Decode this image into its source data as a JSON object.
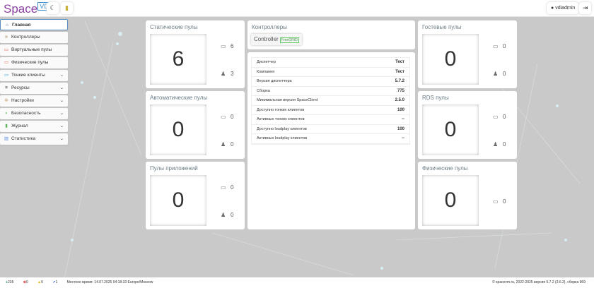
{
  "header": {
    "logo": "Space",
    "logo_badge": "VDI",
    "theme_icon": "moon-icon",
    "book_icon": "book-icon",
    "user": "vdiadmin",
    "logout_icon": "logout-icon"
  },
  "sidebar": {
    "items": [
      {
        "label": "Главная",
        "icon": "home-icon",
        "glyph": "⌂",
        "color": "#4a6a8a",
        "expand": false
      },
      {
        "label": "Контроллеры",
        "icon": "controller-icon",
        "glyph": "■",
        "color": "#d2c0a8",
        "expand": false
      },
      {
        "label": "Виртуальные пулы",
        "icon": "monitor-icon",
        "glyph": "▭",
        "color": "#e05a4a",
        "expand": false
      },
      {
        "label": "Физические пулы",
        "icon": "monitor-icon",
        "glyph": "▭",
        "color": "#e05a4a",
        "expand": false
      },
      {
        "label": "Тонкие клиенты",
        "icon": "laptop-icon",
        "glyph": "▭",
        "color": "#2aa8e0",
        "expand": true
      },
      {
        "label": "Ресурсы",
        "icon": "database-icon",
        "glyph": "≡",
        "color": "#333",
        "expand": true
      },
      {
        "label": "Настройки",
        "icon": "gear-icon",
        "glyph": "✲",
        "color": "#c8a070",
        "expand": true
      },
      {
        "label": "Безопасность",
        "icon": "shield-icon",
        "glyph": "◗",
        "color": "#4caf50",
        "expand": true
      },
      {
        "label": "Журнал",
        "icon": "clipboard-icon",
        "glyph": "▮",
        "color": "#5cb85c",
        "expand": true
      },
      {
        "label": "Статистика",
        "icon": "chart-icon",
        "glyph": "▥",
        "color": "#5b8de0",
        "expand": true
      }
    ]
  },
  "pools": [
    {
      "title": "Статические пулы",
      "count": "6",
      "vms": "6",
      "users": "3"
    },
    {
      "title": "Автоматические пулы",
      "count": "0",
      "vms": "0",
      "users": "0"
    },
    {
      "title": "Пулы приложений",
      "count": "0",
      "vms": "0",
      "users": "0"
    },
    {
      "title": "Гостевые пулы",
      "count": "0",
      "vms": "0",
      "users": "0"
    },
    {
      "title": "RDS пулы",
      "count": "0",
      "vms": "0",
      "users": "0"
    },
    {
      "title": "Физические пулы",
      "count": "0",
      "vms": "0"
    }
  ],
  "controllers": {
    "title": "Контроллеры",
    "name": "Controller",
    "badge": "FreeGRID"
  },
  "info": [
    [
      "Диспетчер",
      "Тест"
    ],
    [
      "Компания",
      "Тест"
    ],
    [
      "Версия диспетчера",
      "5.7.2"
    ],
    [
      "Сборка",
      "775"
    ],
    [
      "Минимальная версия SpaceClient",
      "2.5.0"
    ],
    [
      "Доступно тонких клиентов",
      "100"
    ],
    [
      "Активных тонких клиентов",
      "--"
    ],
    [
      "Доступно loudplay клиентов",
      "100"
    ],
    [
      "Активных loudplay клиентов",
      "--"
    ]
  ],
  "footer": {
    "messages": "235",
    "errors": "0",
    "warnings": "0",
    "tasks": "1",
    "time": "Местное время: 14.07.2025 04:18:33 Europe/Moscow",
    "copyright": "© spacevm.ru, 2022-2025 версия 5.7.2 (3.6.2), сборка 969"
  }
}
